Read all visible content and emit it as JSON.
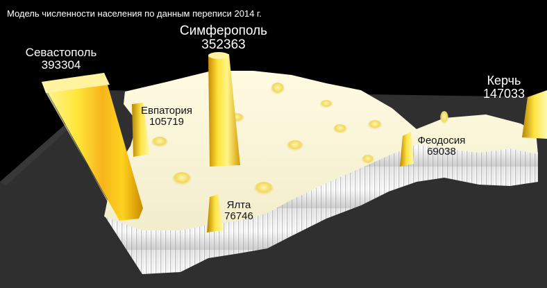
{
  "title": "Модель численности населения по данным переписи 2014 г.",
  "cities": [
    {
      "name": "Севастополь",
      "population": "393304"
    },
    {
      "name": "Симферополь",
      "population": "352363"
    },
    {
      "name": "Керчь",
      "population": "147033"
    },
    {
      "name": "Евпатория",
      "population": "105719"
    },
    {
      "name": "Феодосия",
      "population": "69038"
    },
    {
      "name": "Ялта",
      "population": "76746"
    }
  ],
  "colors": {
    "background": "#000000",
    "ground_plane": "#2f2f2f",
    "surface": "#f7f4dd",
    "spike_light": "#fff36a",
    "spike_mid": "#f2c21a",
    "spike_dark": "#c89000"
  }
}
